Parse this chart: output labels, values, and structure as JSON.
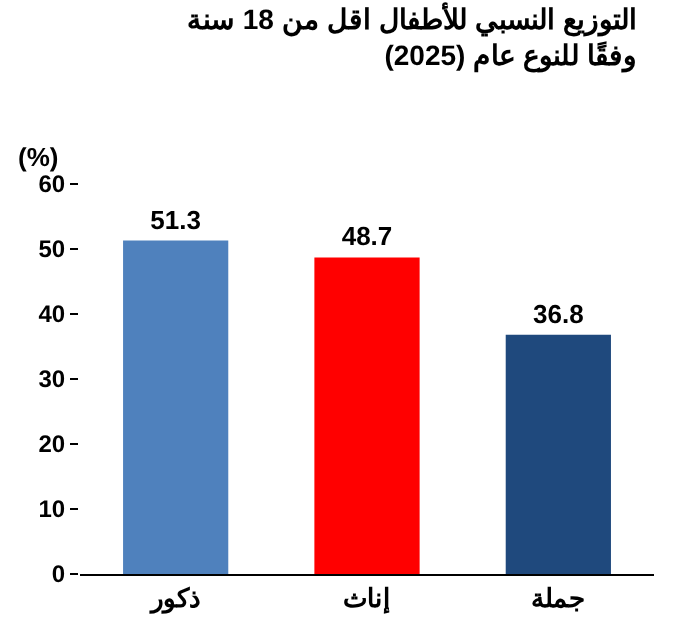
{
  "chart_data": {
    "type": "bar",
    "title": "التوزيع النسبي للأطفال اقل من 18 سنة\nوفقًا للنوع عام (2025)",
    "ylabel": "(%)",
    "categories": [
      "ذكور",
      "إناث",
      "جملة"
    ],
    "values": [
      51.3,
      48.7,
      36.8
    ],
    "colors": [
      "#4f81bd",
      "#ff0000",
      "#1f497d"
    ],
    "ylim": [
      0,
      60
    ],
    "yticks": [
      0,
      10,
      20,
      30,
      40,
      50,
      60
    ],
    "grid": false,
    "data_labels": true
  }
}
